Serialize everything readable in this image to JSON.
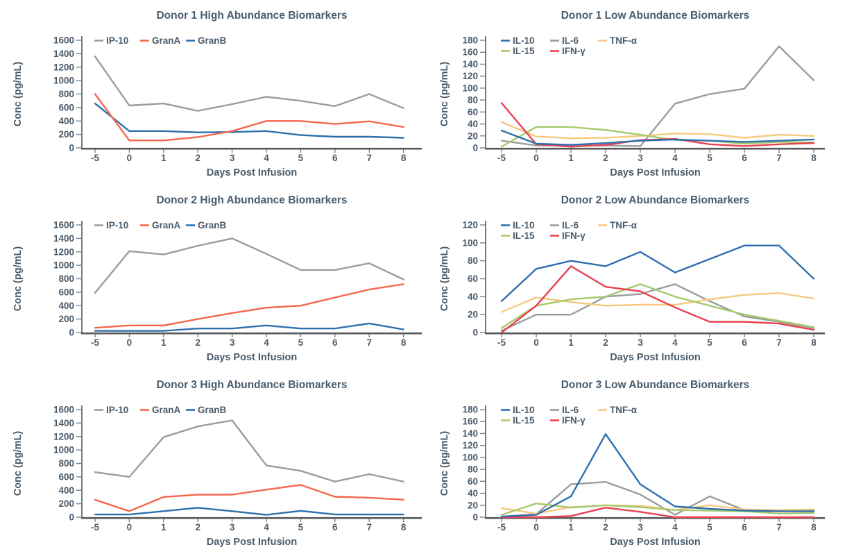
{
  "page": {
    "background": "#ffffff",
    "text_color": "#4a5b6a",
    "axis_color": "#57585a",
    "tick_color": "#808184"
  },
  "styles": {
    "series_colors": {
      "IP-10": "#9c9c9c",
      "GranA": "#f4674c",
      "GranB": "#2e6fae",
      "IL-10": "#2e6fae",
      "IL-6": "#9c9c9c",
      "TNF-α": "#f8c87e",
      "IL-15": "#a5ca6c",
      "IFN-γ": "#e84150"
    }
  },
  "chart_data": [
    {
      "type": "line",
      "title": "Donor 1 High Abundance Biomarkers",
      "xlabel": "Days Post Infusion",
      "ylabel": "Conc (pg/mL)",
      "x_labels": [
        "-5",
        "0",
        "1",
        "2",
        "3",
        "4",
        "5",
        "6",
        "7",
        "8"
      ],
      "ylim": [
        0,
        1600
      ],
      "ytick_step": 200,
      "grid": false,
      "legend_position": "top-left-inside",
      "legend_rows": [
        [
          "IP-10",
          "GranA",
          "GranB"
        ]
      ],
      "series": [
        {
          "name": "IP-10",
          "color": "#9c9c9c",
          "values": [
            1360,
            630,
            660,
            550,
            650,
            760,
            700,
            620,
            800,
            590
          ]
        },
        {
          "name": "GranA",
          "color": "#f4674c",
          "values": [
            800,
            110,
            110,
            160,
            250,
            400,
            400,
            355,
            395,
            310
          ]
        },
        {
          "name": "GranB",
          "color": "#2e6fae",
          "values": [
            660,
            250,
            250,
            230,
            235,
            250,
            190,
            165,
            165,
            150
          ]
        }
      ]
    },
    {
      "type": "line",
      "title": "Donor 1 Low Abundance Biomarkers",
      "xlabel": "Days Post Infusion",
      "ylabel": "Conc (pg/mL)",
      "x_labels": [
        "-5",
        "0",
        "1",
        "2",
        "3",
        "4",
        "5",
        "6",
        "7",
        "8"
      ],
      "ylim": [
        0,
        180
      ],
      "ytick_step": 20,
      "grid": false,
      "legend_position": "top-left-inside",
      "legend_rows": [
        [
          "IL-10",
          "IL-6",
          "TNF-α"
        ],
        [
          "IL-15",
          "IFN-γ"
        ]
      ],
      "series": [
        {
          "name": "IL-10",
          "color": "#2e6fae",
          "values": [
            29,
            7,
            5,
            8,
            12,
            14,
            12,
            10,
            12,
            14
          ]
        },
        {
          "name": "IL-6",
          "color": "#9c9c9c",
          "values": [
            12,
            4,
            4,
            4,
            3,
            74,
            90,
            99,
            170,
            113
          ]
        },
        {
          "name": "TNF-α",
          "color": "#f8c87e",
          "values": [
            43,
            19,
            16,
            17,
            20,
            24,
            23,
            17,
            22,
            20
          ]
        },
        {
          "name": "IL-15",
          "color": "#a5ca6c",
          "values": [
            2,
            35,
            35,
            30,
            22,
            13,
            12,
            7,
            10,
            9
          ]
        },
        {
          "name": "IFN-γ",
          "color": "#e84150",
          "values": [
            75,
            6,
            2,
            5,
            13,
            15,
            6,
            3,
            6,
            8
          ]
        }
      ]
    },
    {
      "type": "line",
      "title": "Donor 2 High Abundance Biomarkers",
      "xlabel": "Days Post Infusion",
      "ylabel": "Conc (pg/mL)",
      "x_labels": [
        "-5",
        "0",
        "1",
        "2",
        "3",
        "4",
        "5",
        "6",
        "7",
        "8"
      ],
      "ylim": [
        0,
        1600
      ],
      "ytick_step": 200,
      "grid": false,
      "legend_position": "top-left-inside",
      "legend_rows": [
        [
          "IP-10",
          "GranA",
          "GranB"
        ]
      ],
      "series": [
        {
          "name": "IP-10",
          "color": "#9c9c9c",
          "values": [
            590,
            1210,
            1160,
            1290,
            1400,
            1170,
            930,
            930,
            1030,
            790
          ]
        },
        {
          "name": "GranA",
          "color": "#f4674c",
          "values": [
            70,
            105,
            105,
            200,
            290,
            370,
            400,
            520,
            640,
            720
          ]
        },
        {
          "name": "GranB",
          "color": "#2e6fae",
          "values": [
            25,
            25,
            25,
            60,
            60,
            105,
            60,
            60,
            135,
            45
          ]
        }
      ]
    },
    {
      "type": "line",
      "title": "Donor 2 Low Abundance Biomarkers",
      "xlabel": "Days Post Infusion",
      "ylabel": "Conc (pg/mL)",
      "x_labels": [
        "-5",
        "0",
        "1",
        "2",
        "3",
        "4",
        "5",
        "6",
        "7",
        "8"
      ],
      "ylim": [
        0,
        120
      ],
      "ytick_step": 20,
      "grid": false,
      "legend_position": "top-left-inside",
      "legend_rows": [
        [
          "IL-10",
          "IL-6",
          "TNF-α"
        ],
        [
          "IL-15",
          "IFN-γ"
        ]
      ],
      "series": [
        {
          "name": "IL-10",
          "color": "#2e6fae",
          "values": [
            35,
            71,
            80,
            74,
            90,
            67,
            82,
            97,
            97,
            60
          ]
        },
        {
          "name": "IL-6",
          "color": "#9c9c9c",
          "values": [
            2,
            20,
            20,
            40,
            43,
            54,
            35,
            18,
            12,
            5
          ]
        },
        {
          "name": "TNF-α",
          "color": "#f8c87e",
          "values": [
            23,
            39,
            34,
            30,
            31,
            31,
            37,
            42,
            44,
            38
          ]
        },
        {
          "name": "IL-15",
          "color": "#a5ca6c",
          "values": [
            5,
            30,
            37,
            40,
            54,
            40,
            30,
            20,
            13,
            6
          ]
        },
        {
          "name": "IFN-γ",
          "color": "#e84150",
          "values": [
            0,
            30,
            74,
            51,
            46,
            28,
            12,
            12,
            10,
            3
          ]
        }
      ]
    },
    {
      "type": "line",
      "title": "Donor 3 High Abundance Biomarkers",
      "xlabel": "Days Post Infusion",
      "ylabel": "Conc (pg/mL)",
      "x_labels": [
        "-5",
        "0",
        "1",
        "2",
        "3",
        "4",
        "5",
        "6",
        "7",
        "8"
      ],
      "ylim": [
        0,
        1600
      ],
      "ytick_step": 200,
      "grid": false,
      "legend_position": "top-left-inside",
      "legend_rows": [
        [
          "IP-10",
          "GranA",
          "GranB"
        ]
      ],
      "series": [
        {
          "name": "IP-10",
          "color": "#9c9c9c",
          "values": [
            670,
            600,
            1190,
            1350,
            1440,
            770,
            690,
            530,
            640,
            530
          ]
        },
        {
          "name": "GranA",
          "color": "#f4674c",
          "values": [
            260,
            90,
            300,
            335,
            335,
            410,
            480,
            305,
            290,
            260
          ]
        },
        {
          "name": "GranB",
          "color": "#2e6fae",
          "values": [
            40,
            40,
            90,
            140,
            90,
            35,
            95,
            40,
            40,
            40
          ]
        }
      ]
    },
    {
      "type": "line",
      "title": "Donor 3 Low Abundance Biomarkers",
      "xlabel": "Days Post Infusion",
      "ylabel": "Conc (pg/mL)",
      "x_labels": [
        "-5",
        "0",
        "1",
        "2",
        "3",
        "4",
        "5",
        "6",
        "7",
        "8"
      ],
      "ylim": [
        0,
        180
      ],
      "ytick_step": 20,
      "grid": false,
      "legend_position": "top-left-inside",
      "legend_rows": [
        [
          "IL-10",
          "IL-6",
          "TNF-α"
        ],
        [
          "IL-15",
          "IFN-γ"
        ]
      ],
      "series": [
        {
          "name": "IL-10",
          "color": "#2e6fae",
          "values": [
            1,
            4,
            35,
            139,
            55,
            18,
            14,
            11,
            10,
            10
          ]
        },
        {
          "name": "IL-6",
          "color": "#9c9c9c",
          "values": [
            1,
            5,
            55,
            59,
            38,
            4,
            35,
            12,
            10,
            11
          ]
        },
        {
          "name": "TNF-α",
          "color": "#f8c87e",
          "values": [
            15,
            6,
            17,
            20,
            19,
            12,
            20,
            13,
            12,
            13
          ]
        },
        {
          "name": "IL-15",
          "color": "#a5ca6c",
          "values": [
            4,
            23,
            16,
            20,
            17,
            12,
            11,
            10,
            6,
            7
          ]
        },
        {
          "name": "IFN-γ",
          "color": "#e84150",
          "values": [
            0,
            0,
            2,
            16,
            9,
            0,
            0,
            0,
            0,
            0
          ]
        }
      ]
    }
  ]
}
